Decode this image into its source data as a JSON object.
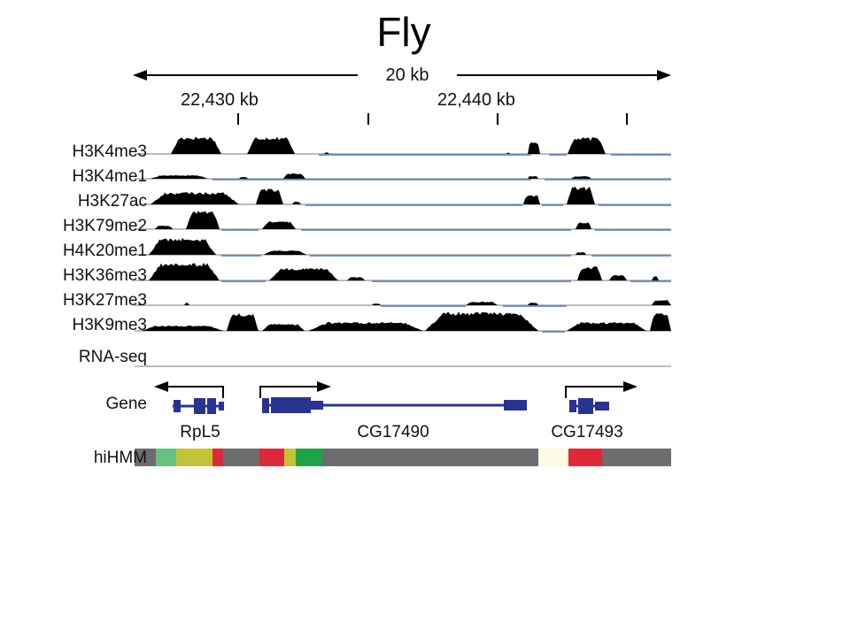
{
  "title": "Fly",
  "scale": {
    "label": "20 kb"
  },
  "coordinates": [
    {
      "label": "22,430 kb"
    },
    {
      "label": "22,440 kb"
    }
  ],
  "tracks": [
    {
      "id": "h3k4me3",
      "label": "H3K4me3"
    },
    {
      "id": "h3k4me1",
      "label": "H3K4me1"
    },
    {
      "id": "h3k27ac",
      "label": "H3K27ac"
    },
    {
      "id": "h3k79me2",
      "label": "H3K79me2"
    },
    {
      "id": "h4k20me1",
      "label": "H4K20me1"
    },
    {
      "id": "h3k36me3",
      "label": "H3K36me3"
    },
    {
      "id": "h3k27me3",
      "label": "H3K27me3"
    },
    {
      "id": "h3k9me3",
      "label": "H3K9me3"
    },
    {
      "id": "rnaseq",
      "label": "RNA-seq"
    }
  ],
  "gene_track": {
    "label": "Gene"
  },
  "genes": [
    {
      "name": "RpL5",
      "strand": "-"
    },
    {
      "name": "CG17490",
      "strand": "+"
    },
    {
      "name": "CG17493",
      "strand": "+"
    }
  ],
  "hihmm": {
    "label": "hiHMM",
    "segment_colors": [
      "#6d6d6d",
      "#66c080",
      "#c2c436",
      "#e0283a",
      "#6d6d6d",
      "#e0283a",
      "#c2c436",
      "#1fa24a",
      "#6d6d6d",
      "#fdfbe4",
      "#e0283a",
      "#6d6d6d"
    ]
  },
  "colors": {
    "signal": "#000000",
    "baseline_gray": "#bdbdbd",
    "baseline_blue": "#4f79b8",
    "rnaseq": "#f29a24",
    "gene": "#2b3390"
  }
}
